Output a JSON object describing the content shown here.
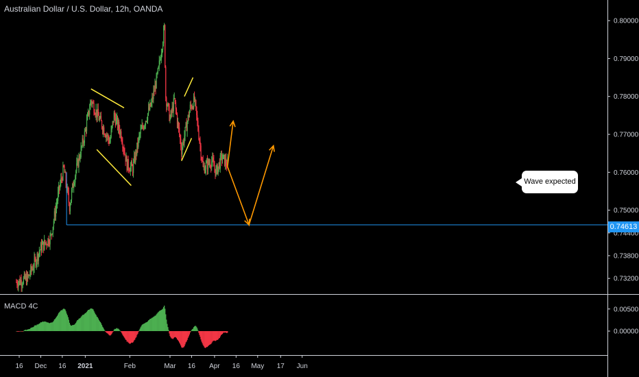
{
  "header": {
    "symbol_title": "Australian Dollar / U.S. Dollar, 12h, OANDA"
  },
  "macd": {
    "title": "MACD 4C",
    "ticks": [
      "0.00500",
      "0.00000"
    ],
    "ylim": [
      -0.0048,
      0.0076
    ],
    "pos_color": "#4caf50",
    "neg_color": "#f23645"
  },
  "annotations": {
    "callout_text": "Wave expected",
    "support_value": 0.74613,
    "support_label": "0.74613",
    "support_color": "#2196f3",
    "pattern_color": "#ffeb3b",
    "wave_color": "#ff9800"
  },
  "chart_data": {
    "type": "candlestick",
    "title": "Australian Dollar / U.S. Dollar, 12h, OANDA",
    "x_tick_labels": [
      "16",
      "Dec",
      "16",
      "2021",
      "Feb",
      "Mar",
      "16",
      "Apr",
      "16",
      "May",
      "17",
      "Jun"
    ],
    "y_tick_labels": [
      "0.80000",
      "0.79000",
      "0.78000",
      "0.77000",
      "0.76000",
      "0.75000",
      "0.74400",
      "0.73800",
      "0.73200"
    ],
    "ylim": [
      0.7295,
      0.804
    ],
    "up_color": "#4caf50",
    "down_color": "#f23645",
    "price_waypoints": [
      {
        "date": "Nov 14",
        "price": 0.731
      },
      {
        "date": "Nov 22",
        "price": 0.732
      },
      {
        "date": "Dec 1",
        "price": 0.74
      },
      {
        "date": "Dec 8",
        "price": 0.743
      },
      {
        "date": "Dec 14",
        "price": 0.756
      },
      {
        "date": "Dec 17",
        "price": 0.761
      },
      {
        "date": "Dec 21",
        "price": 0.751
      },
      {
        "date": "Dec 24",
        "price": 0.758
      },
      {
        "date": "Dec 31",
        "price": 0.769
      },
      {
        "date": "Jan 5",
        "price": 0.779
      },
      {
        "date": "Jan 12",
        "price": 0.773
      },
      {
        "date": "Jan 18",
        "price": 0.768
      },
      {
        "date": "Jan 21",
        "price": 0.775
      },
      {
        "date": "Jan 26",
        "price": 0.77
      },
      {
        "date": "Jan 30",
        "price": 0.762
      },
      {
        "date": "Feb 3",
        "price": 0.761
      },
      {
        "date": "Feb 8",
        "price": 0.77
      },
      {
        "date": "Feb 16",
        "price": 0.778
      },
      {
        "date": "Feb 21",
        "price": 0.787
      },
      {
        "date": "Feb 25",
        "price": 0.798
      },
      {
        "date": "Feb 26",
        "price": 0.78
      },
      {
        "date": "Mar 1",
        "price": 0.774
      },
      {
        "date": "Mar 4",
        "price": 0.779
      },
      {
        "date": "Mar 9",
        "price": 0.766
      },
      {
        "date": "Mar 15",
        "price": 0.777
      },
      {
        "date": "Mar 18",
        "price": 0.779
      },
      {
        "date": "Mar 20",
        "price": 0.773
      },
      {
        "date": "Mar 24",
        "price": 0.761
      },
      {
        "date": "Mar 30",
        "price": 0.763
      },
      {
        "date": "Apr 2",
        "price": 0.76
      },
      {
        "date": "Apr 6",
        "price": 0.764
      },
      {
        "date": "Apr 10",
        "price": 0.762
      }
    ],
    "patterns": [
      {
        "name": "descending channel upper",
        "points": [
          [
            "Jan 5",
            0.782
          ],
          [
            "Jan 28",
            0.777
          ]
        ]
      },
      {
        "name": "descending channel lower",
        "points": [
          [
            "Jan 9",
            0.766
          ],
          [
            "Feb 2",
            0.7565
          ]
        ]
      },
      {
        "name": "rising wedge upper",
        "points": [
          [
            "Mar 11",
            0.78
          ],
          [
            "Mar 17",
            0.785
          ]
        ]
      },
      {
        "name": "rising wedge lower",
        "points": [
          [
            "Mar 9",
            0.763
          ],
          [
            "Mar 16",
            0.769
          ]
        ]
      }
    ],
    "projected_wave": [
      [
        "Apr 10",
        0.7615
      ],
      [
        "Apr 25",
        0.74613
      ],
      [
        "May 12",
        0.767
      ]
    ],
    "wave_arrows": [
      [
        [
          "Apr 10",
          0.7615
        ],
        [
          "Apr 14",
          0.7735
        ]
      ]
    ]
  }
}
